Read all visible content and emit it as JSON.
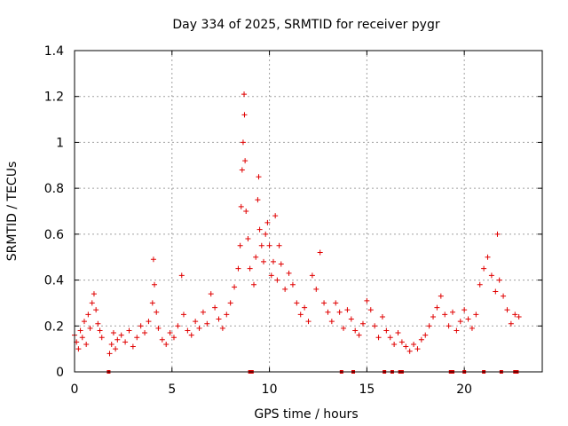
{
  "chart_data": {
    "type": "scatter",
    "title": "Day 334 of 2025, SRMTID for receiver pygr",
    "xlabel": "GPS time / hours",
    "ylabel": "SRMTID / TECUs",
    "xlim": [
      0,
      24
    ],
    "ylim": [
      0,
      1.4
    ],
    "x_ticks": [
      0,
      5,
      10,
      15,
      20
    ],
    "x_tick_labels": [
      "0",
      "5",
      "10",
      "15",
      "20"
    ],
    "y_ticks": [
      0,
      0.2,
      0.4,
      0.6,
      0.8,
      1.0,
      1.2,
      1.4
    ],
    "y_tick_labels": [
      "0",
      "0.2",
      "0.4",
      "0.6",
      "0.8",
      "1",
      "1.2",
      "1.4"
    ],
    "grid": true,
    "marker": "plus",
    "color": "#e00000",
    "series": [
      {
        "name": "SRMTID",
        "points": [
          [
            0.0,
            0.16
          ],
          [
            0.1,
            0.13
          ],
          [
            0.2,
            0.1
          ],
          [
            0.3,
            0.18
          ],
          [
            0.4,
            0.15
          ],
          [
            0.5,
            0.22
          ],
          [
            0.6,
            0.12
          ],
          [
            0.7,
            0.25
          ],
          [
            0.8,
            0.19
          ],
          [
            0.9,
            0.3
          ],
          [
            1.0,
            0.34
          ],
          [
            1.1,
            0.27
          ],
          [
            1.2,
            0.21
          ],
          [
            1.3,
            0.18
          ],
          [
            1.4,
            0.15
          ],
          [
            1.8,
            0.08
          ],
          [
            1.9,
            0.12
          ],
          [
            2.0,
            0.17
          ],
          [
            2.1,
            0.1
          ],
          [
            2.2,
            0.14
          ],
          [
            2.4,
            0.16
          ],
          [
            2.6,
            0.13
          ],
          [
            2.8,
            0.18
          ],
          [
            3.0,
            0.11
          ],
          [
            3.2,
            0.15
          ],
          [
            3.4,
            0.2
          ],
          [
            3.6,
            0.17
          ],
          [
            3.8,
            0.22
          ],
          [
            4.0,
            0.3
          ],
          [
            4.05,
            0.49
          ],
          [
            4.1,
            0.38
          ],
          [
            4.2,
            0.26
          ],
          [
            4.3,
            0.19
          ],
          [
            4.5,
            0.14
          ],
          [
            4.7,
            0.12
          ],
          [
            4.9,
            0.17
          ],
          [
            5.1,
            0.15
          ],
          [
            5.3,
            0.2
          ],
          [
            5.5,
            0.42
          ],
          [
            5.6,
            0.25
          ],
          [
            5.8,
            0.18
          ],
          [
            6.0,
            0.16
          ],
          [
            6.2,
            0.22
          ],
          [
            6.4,
            0.19
          ],
          [
            6.6,
            0.26
          ],
          [
            6.8,
            0.21
          ],
          [
            7.0,
            0.34
          ],
          [
            7.2,
            0.28
          ],
          [
            7.4,
            0.23
          ],
          [
            7.6,
            0.19
          ],
          [
            7.8,
            0.25
          ],
          [
            8.0,
            0.3
          ],
          [
            8.2,
            0.37
          ],
          [
            8.4,
            0.45
          ],
          [
            8.5,
            0.55
          ],
          [
            8.55,
            0.72
          ],
          [
            8.6,
            0.88
          ],
          [
            8.65,
            1.0
          ],
          [
            8.7,
            1.21
          ],
          [
            8.72,
            1.12
          ],
          [
            8.75,
            0.92
          ],
          [
            8.8,
            0.7
          ],
          [
            8.9,
            0.58
          ],
          [
            9.0,
            0.45
          ],
          [
            9.2,
            0.38
          ],
          [
            9.3,
            0.5
          ],
          [
            9.4,
            0.75
          ],
          [
            9.45,
            0.85
          ],
          [
            9.5,
            0.62
          ],
          [
            9.6,
            0.55
          ],
          [
            9.7,
            0.48
          ],
          [
            9.8,
            0.6
          ],
          [
            9.9,
            0.65
          ],
          [
            10.0,
            0.55
          ],
          [
            10.1,
            0.42
          ],
          [
            10.2,
            0.48
          ],
          [
            10.3,
            0.68
          ],
          [
            10.4,
            0.4
          ],
          [
            10.5,
            0.55
          ],
          [
            10.6,
            0.47
          ],
          [
            10.8,
            0.36
          ],
          [
            11.0,
            0.43
          ],
          [
            11.2,
            0.38
          ],
          [
            11.4,
            0.3
          ],
          [
            11.6,
            0.25
          ],
          [
            11.8,
            0.28
          ],
          [
            12.0,
            0.22
          ],
          [
            12.2,
            0.42
          ],
          [
            12.4,
            0.36
          ],
          [
            12.6,
            0.52
          ],
          [
            12.8,
            0.3
          ],
          [
            13.0,
            0.26
          ],
          [
            13.2,
            0.22
          ],
          [
            13.4,
            0.3
          ],
          [
            13.6,
            0.26
          ],
          [
            13.8,
            0.19
          ],
          [
            14.0,
            0.27
          ],
          [
            14.2,
            0.23
          ],
          [
            14.4,
            0.18
          ],
          [
            14.6,
            0.16
          ],
          [
            14.8,
            0.21
          ],
          [
            15.0,
            0.31
          ],
          [
            15.2,
            0.27
          ],
          [
            15.4,
            0.2
          ],
          [
            15.6,
            0.15
          ],
          [
            15.8,
            0.24
          ],
          [
            16.0,
            0.18
          ],
          [
            16.2,
            0.15
          ],
          [
            16.4,
            0.12
          ],
          [
            16.6,
            0.17
          ],
          [
            16.8,
            0.13
          ],
          [
            17.0,
            0.11
          ],
          [
            17.2,
            0.09
          ],
          [
            17.4,
            0.12
          ],
          [
            17.6,
            0.1
          ],
          [
            17.8,
            0.14
          ],
          [
            18.0,
            0.16
          ],
          [
            18.2,
            0.2
          ],
          [
            18.4,
            0.24
          ],
          [
            18.6,
            0.28
          ],
          [
            18.8,
            0.33
          ],
          [
            19.0,
            0.25
          ],
          [
            19.2,
            0.2
          ],
          [
            19.4,
            0.26
          ],
          [
            19.6,
            0.18
          ],
          [
            19.8,
            0.22
          ],
          [
            20.0,
            0.27
          ],
          [
            20.2,
            0.23
          ],
          [
            20.4,
            0.19
          ],
          [
            20.6,
            0.25
          ],
          [
            20.8,
            0.38
          ],
          [
            21.0,
            0.45
          ],
          [
            21.2,
            0.5
          ],
          [
            21.4,
            0.42
          ],
          [
            21.6,
            0.35
          ],
          [
            21.7,
            0.6
          ],
          [
            21.8,
            0.4
          ],
          [
            22.0,
            0.33
          ],
          [
            22.2,
            0.27
          ],
          [
            22.4,
            0.21
          ],
          [
            22.6,
            0.25
          ],
          [
            22.8,
            0.24
          ]
        ]
      }
    ],
    "gap_markers_x": [
      1.75,
      9.0,
      9.1,
      13.7,
      14.3,
      15.9,
      16.3,
      16.7,
      16.8,
      19.3,
      19.4,
      20.0,
      21.0,
      21.9,
      22.6,
      22.7
    ]
  }
}
